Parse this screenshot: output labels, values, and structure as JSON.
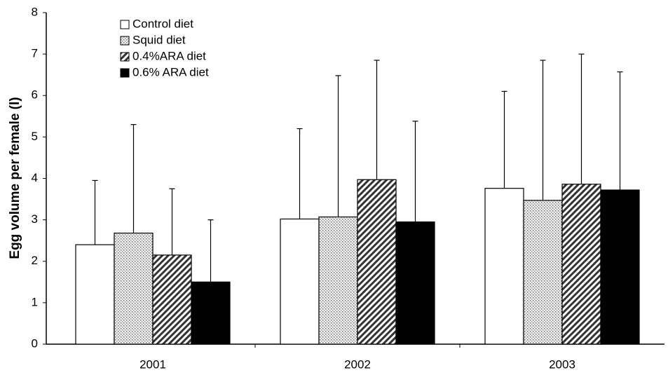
{
  "chart_data": {
    "type": "bar",
    "y_label": "Egg volume per female (l)",
    "categories": [
      "2001",
      "2002",
      "2003"
    ],
    "series": [
      {
        "name": "Control diet",
        "color": "#ffffff",
        "pattern": "none",
        "values": [
          2.4,
          3.02,
          3.76
        ],
        "errors": [
          1.55,
          2.18,
          2.34
        ]
      },
      {
        "name": "Squid diet",
        "color": "#cfcfcf",
        "pattern": "dots",
        "values": [
          2.68,
          3.07,
          3.47
        ],
        "errors": [
          2.62,
          3.41,
          3.38
        ]
      },
      {
        "name": "0.4%ARA diet",
        "color": "#555555",
        "pattern": "hatch",
        "values": [
          2.15,
          3.97,
          3.86
        ],
        "errors": [
          1.6,
          2.88,
          3.14
        ]
      },
      {
        "name": "0.6% ARA diet",
        "color": "#000000",
        "pattern": "solid",
        "values": [
          1.5,
          2.95,
          3.72
        ],
        "errors": [
          1.5,
          2.43,
          2.85
        ]
      }
    ],
    "ylim": [
      0,
      8
    ],
    "yticks": [
      0,
      1,
      2,
      3,
      4,
      5,
      6,
      7,
      8
    ],
    "grid": false,
    "legend": "upper left"
  }
}
